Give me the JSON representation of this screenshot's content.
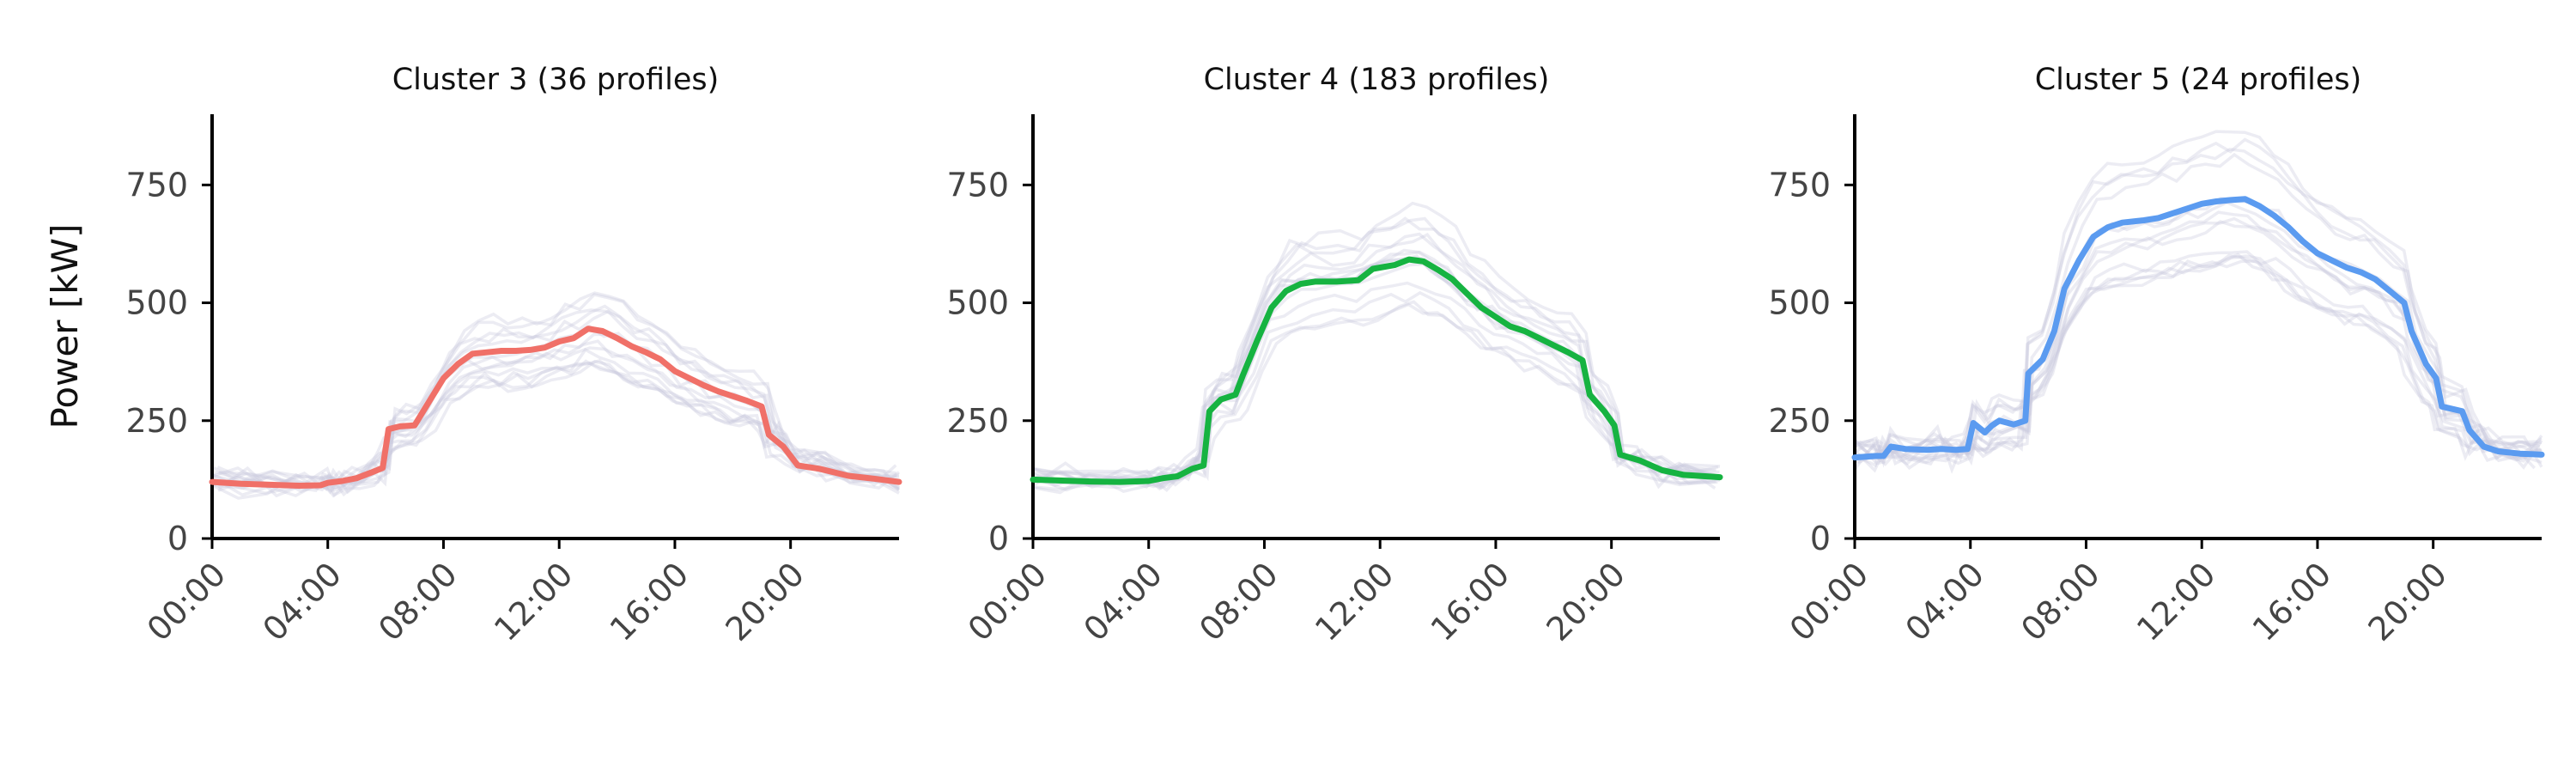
{
  "y_axis_label": "Power [kW]",
  "chart_data": [
    {
      "type": "line",
      "title": "Cluster 3 (36 profiles)",
      "xlabel": "",
      "ylabel": "Power [kW]",
      "x_ticks": [
        "00:00",
        "04:00",
        "08:00",
        "12:00",
        "16:00",
        "20:00"
      ],
      "y_ticks": [
        "0",
        "250",
        "500",
        "750"
      ],
      "ylim": [
        0,
        900
      ],
      "xlim_hours": [
        0,
        23.75
      ],
      "mean_color": "#f07068",
      "background_color": "#c8c9dc",
      "series": [
        {
          "values": [
            [
              0,
              120
            ],
            [
              1,
              116
            ],
            [
              2,
              114
            ],
            [
              3,
              112
            ],
            [
              3.75,
              113
            ],
            [
              4,
              118
            ],
            [
              4.5,
              122
            ],
            [
              5,
              128
            ],
            [
              5.5,
              140
            ],
            [
              5.9,
              150
            ],
            [
              6.1,
              232
            ],
            [
              6.5,
              238
            ],
            [
              7,
              240
            ],
            [
              7.5,
              290
            ],
            [
              8,
              340
            ],
            [
              8.5,
              370
            ],
            [
              9,
              392
            ],
            [
              9.5,
              395
            ],
            [
              10,
              398
            ],
            [
              10.5,
              398
            ],
            [
              11,
              400
            ],
            [
              11.5,
              405
            ],
            [
              12,
              418
            ],
            [
              12.5,
              425
            ],
            [
              13,
              445
            ],
            [
              13.5,
              440
            ],
            [
              14,
              425
            ],
            [
              14.5,
              408
            ],
            [
              15,
              395
            ],
            [
              15.5,
              380
            ],
            [
              16,
              355
            ],
            [
              16.5,
              340
            ],
            [
              17,
              325
            ],
            [
              17.5,
              312
            ],
            [
              18,
              302
            ],
            [
              18.5,
              292
            ],
            [
              19,
              280
            ],
            [
              19.25,
              220
            ],
            [
              19.75,
              195
            ],
            [
              20.25,
              155
            ],
            [
              21,
              148
            ],
            [
              22,
              133
            ],
            [
              23,
              126
            ],
            [
              23.75,
              120
            ]
          ]
        }
      ]
    },
    {
      "type": "line",
      "title": "Cluster 4 (183 profiles)",
      "xlabel": "",
      "ylabel": "",
      "x_ticks": [
        "00:00",
        "04:00",
        "08:00",
        "12:00",
        "16:00",
        "20:00"
      ],
      "y_ticks": [
        "0",
        "250",
        "500",
        "750"
      ],
      "ylim": [
        0,
        900
      ],
      "xlim_hours": [
        0,
        23.75
      ],
      "mean_color": "#16b341",
      "background_color": "#c8c9dc",
      "series": [
        {
          "values": [
            [
              0,
              125
            ],
            [
              1,
              123
            ],
            [
              2,
              121
            ],
            [
              3,
              120
            ],
            [
              4,
              122
            ],
            [
              4.5,
              128
            ],
            [
              5,
              132
            ],
            [
              5.5,
              148
            ],
            [
              5.9,
              155
            ],
            [
              6.1,
              270
            ],
            [
              6.5,
              295
            ],
            [
              7,
              305
            ],
            [
              7.25,
              345
            ],
            [
              7.75,
              420
            ],
            [
              8.25,
              490
            ],
            [
              8.75,
              525
            ],
            [
              9.25,
              540
            ],
            [
              9.75,
              545
            ],
            [
              10.5,
              545
            ],
            [
              11.25,
              548
            ],
            [
              11.75,
              572
            ],
            [
              12.5,
              580
            ],
            [
              13,
              592
            ],
            [
              13.5,
              588
            ],
            [
              14,
              570
            ],
            [
              14.5,
              550
            ],
            [
              15,
              520
            ],
            [
              15.5,
              490
            ],
            [
              16,
              470
            ],
            [
              16.5,
              450
            ],
            [
              17,
              440
            ],
            [
              17.5,
              425
            ],
            [
              18,
              410
            ],
            [
              18.5,
              395
            ],
            [
              19,
              378
            ],
            [
              19.25,
              305
            ],
            [
              19.75,
              270
            ],
            [
              20.1,
              240
            ],
            [
              20.3,
              178
            ],
            [
              21,
              165
            ],
            [
              21.75,
              145
            ],
            [
              22.5,
              135
            ],
            [
              23.75,
              130
            ]
          ]
        }
      ]
    },
    {
      "type": "line",
      "title": "Cluster 5 (24 profiles)",
      "xlabel": "",
      "ylabel": "",
      "x_ticks": [
        "00:00",
        "04:00",
        "08:00",
        "12:00",
        "16:00",
        "20:00"
      ],
      "y_ticks": [
        "0",
        "250",
        "500",
        "750"
      ],
      "ylim": [
        0,
        900
      ],
      "xlim_hours": [
        0,
        23.75
      ],
      "mean_color": "#5b9bf0",
      "background_color": "#c8c9dc",
      "series": [
        {
          "values": [
            [
              0,
              172
            ],
            [
              0.75,
              175
            ],
            [
              1,
              175
            ],
            [
              1.25,
              195
            ],
            [
              1.75,
              190
            ],
            [
              2.5,
              188
            ],
            [
              3,
              190
            ],
            [
              3.5,
              188
            ],
            [
              3.9,
              190
            ],
            [
              4.1,
              245
            ],
            [
              4.5,
              225
            ],
            [
              4.75,
              240
            ],
            [
              5,
              250
            ],
            [
              5.5,
              242
            ],
            [
              5.9,
              250
            ],
            [
              6,
              350
            ],
            [
              6.5,
              380
            ],
            [
              6.9,
              440
            ],
            [
              7.25,
              530
            ],
            [
              7.75,
              590
            ],
            [
              8.25,
              640
            ],
            [
              8.75,
              660
            ],
            [
              9.25,
              670
            ],
            [
              10,
              675
            ],
            [
              10.5,
              680
            ],
            [
              11,
              690
            ],
            [
              11.5,
              700
            ],
            [
              12,
              710
            ],
            [
              12.5,
              715
            ],
            [
              13,
              718
            ],
            [
              13.5,
              720
            ],
            [
              14,
              705
            ],
            [
              14.5,
              685
            ],
            [
              15,
              660
            ],
            [
              15.5,
              630
            ],
            [
              16,
              605
            ],
            [
              16.5,
              590
            ],
            [
              17,
              575
            ],
            [
              17.5,
              565
            ],
            [
              18,
              550
            ],
            [
              18.5,
              525
            ],
            [
              19,
              500
            ],
            [
              19.25,
              440
            ],
            [
              19.75,
              370
            ],
            [
              20.1,
              340
            ],
            [
              20.3,
              280
            ],
            [
              21,
              270
            ],
            [
              21.25,
              230
            ],
            [
              21.75,
              195
            ],
            [
              22.25,
              185
            ],
            [
              23,
              180
            ],
            [
              23.75,
              178
            ]
          ]
        }
      ]
    }
  ]
}
